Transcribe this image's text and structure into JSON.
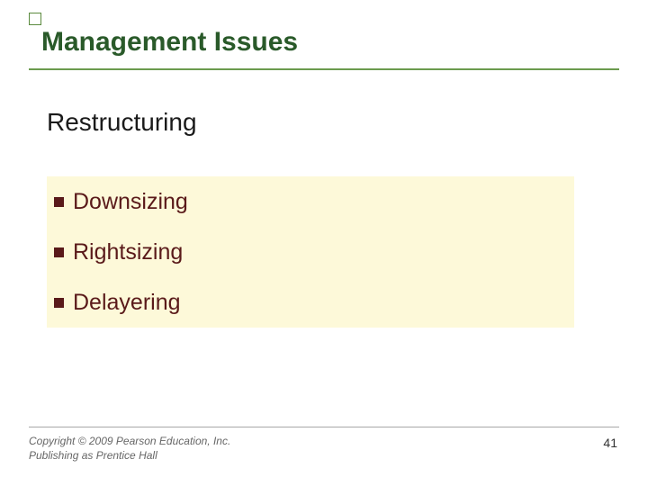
{
  "title": "Management Issues",
  "title_color": "#2a5a2a",
  "underline_color": "#6b9b4e",
  "subtitle": "Restructuring",
  "bullets": {
    "items": [
      {
        "text": "Downsizing"
      },
      {
        "text": "Rightsizing"
      },
      {
        "text": "Delayering"
      }
    ],
    "box_bg": "#fdf9d9",
    "marker_color": "#5a1a1a",
    "text_color": "#5a1a1a",
    "fontsize": 25
  },
  "footer": {
    "copyright_line1": "Copyright © 2009 Pearson Education, Inc.",
    "copyright_line2": "Publishing as Prentice Hall",
    "page_number": "41"
  },
  "background_color": "#ffffff"
}
